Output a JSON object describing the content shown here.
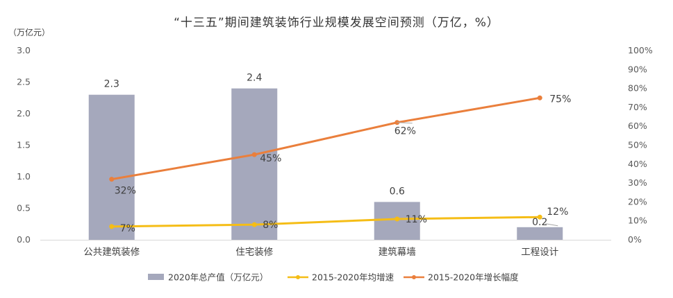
{
  "chart_data": {
    "type": "bar",
    "title": "“十三五”期间建筑装饰行业规模发展空间预测（万亿，%）",
    "y1_unit_label": "（万亿元）",
    "categories": [
      "公共建筑装修",
      "住宅装修",
      "建筑幕墙",
      "工程设计"
    ],
    "bar_series": {
      "name": "2020年总产值（万亿元）",
      "values": [
        2.3,
        2.4,
        0.6,
        0.2
      ],
      "labels": [
        "2.3",
        "2.4",
        "0.6",
        "0.2"
      ],
      "color": "#a5a8bc"
    },
    "line_series": [
      {
        "name": "2015-2020年均增速",
        "values": [
          7,
          8,
          11,
          12
        ],
        "labels": [
          "7%",
          "8%",
          "11%",
          "12%"
        ],
        "color": "#f5bd16",
        "axis": "right"
      },
      {
        "name": "2015-2020年增长幅度",
        "values": [
          32,
          45,
          62,
          75
        ],
        "labels": [
          "32%",
          "45%",
          "62%",
          "75%"
        ],
        "color": "#ea7f3c",
        "axis": "right"
      }
    ],
    "y1_range": [
      0,
      3.0
    ],
    "y1_ticks": [
      "0.0",
      "0.5",
      "1.0",
      "1.5",
      "2.0",
      "2.5",
      "3.0"
    ],
    "y2_range": [
      0,
      100
    ],
    "y2_ticks": [
      "0%",
      "10%",
      "20%",
      "30%",
      "40%",
      "50%",
      "60%",
      "70%",
      "80%",
      "90%",
      "100%"
    ],
    "grid": false,
    "legend_position": "bottom"
  }
}
